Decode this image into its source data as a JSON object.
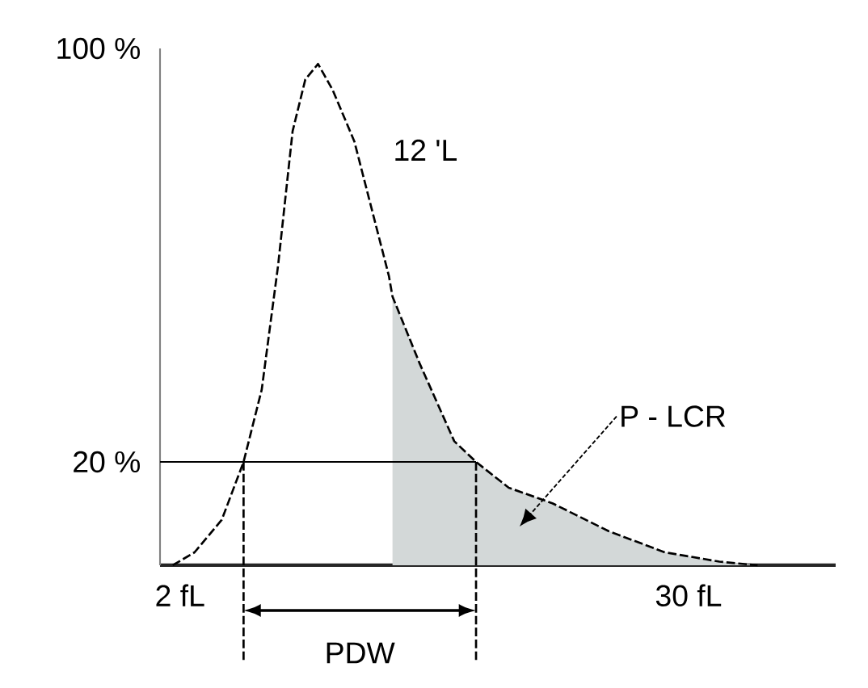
{
  "chart_data": {
    "type": "line",
    "series": [
      {
        "type": "area",
        "color": "#d3d8d8",
        "x": [
          13.7,
          15.2,
          17.1,
          18.3,
          20.1,
          22.5,
          25.6,
          28.7,
          31.7,
          33.8
        ],
        "values": [
          52,
          39,
          24,
          20,
          15,
          12,
          6.6,
          2.5,
          0.7,
          0
        ]
      },
      {
        "color": "#000000",
        "line_style": "dashed",
        "x": [
          1.6,
          2.8,
          4.3,
          5.5,
          6.5,
          7.4,
          8.2,
          8.9,
          9.6,
          10.4,
          11.6,
          13.5,
          13.7,
          15.2,
          17.1,
          18.3,
          20.1,
          22.5,
          25.6,
          28.7,
          31.7,
          33.8
        ],
        "values": [
          0,
          2.5,
          8.8,
          20,
          34,
          58,
          84,
          94,
          97,
          92,
          82,
          56,
          52,
          39,
          24,
          20,
          15,
          12,
          6.6,
          2.5,
          0.7,
          0
        ]
      }
    ],
    "xlim": [
      0.9,
      38.1
    ],
    "ylim": [
      0,
      100
    ],
    "xticks": [
      {
        "value": 2,
        "label": "2 fL"
      },
      {
        "value": 30,
        "label": "30 fL"
      }
    ],
    "yticks": [
      {
        "value": 20,
        "label": "20 %"
      },
      {
        "value": 100,
        "label": "100 %"
      }
    ],
    "ref_lines": [
      {
        "axis": "y",
        "value": 20,
        "line_style": "solid"
      },
      {
        "axis": "x",
        "value": 5.5,
        "line_style": "dashed"
      },
      {
        "axis": "x",
        "value": 18.3,
        "line_style": "dashed"
      }
    ],
    "annotations": [
      "12 'L",
      "P - LCR",
      "PDW"
    ]
  }
}
